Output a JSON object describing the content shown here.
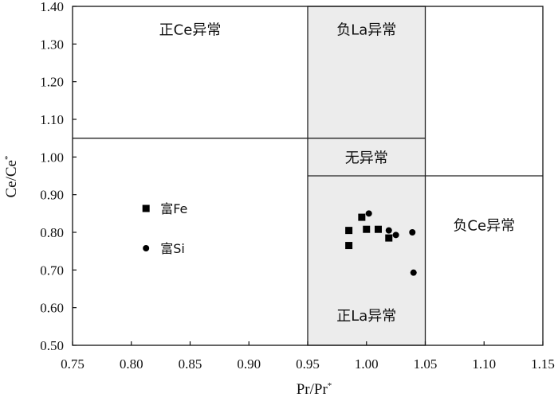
{
  "chart_data": {
    "type": "scatter",
    "xlabel": "Pr/Pr",
    "xlabel_sup": "*",
    "ylabel": "Ce/Ce",
    "ylabel_sup": "*",
    "xlim": [
      0.75,
      1.15
    ],
    "ylim": [
      0.5,
      1.4
    ],
    "x_ticks": [
      "0.75",
      "0.80",
      "0.85",
      "0.90",
      "0.95",
      "1.00",
      "1.05",
      "1.10",
      "1.15"
    ],
    "y_ticks": [
      "0.50",
      "0.60",
      "0.70",
      "0.80",
      "0.90",
      "1.00",
      "1.10",
      "1.20",
      "1.30",
      "1.40"
    ],
    "grid": false,
    "legend_position": "middle-left",
    "shaded_band": {
      "x_from": 0.95,
      "x_to": 1.05,
      "color": "#ececec"
    },
    "boundary_lines": [
      {
        "from": [
          0.75,
          1.05
        ],
        "to": [
          1.05,
          1.05
        ]
      },
      {
        "from": [
          0.95,
          0.95
        ],
        "to": [
          1.15,
          0.95
        ]
      }
    ],
    "regions": [
      {
        "label": "正Ce异常",
        "x": 0.85,
        "y": 1.34
      },
      {
        "label": "负La异常",
        "x": 1.0,
        "y": 1.34
      },
      {
        "label": "无异常",
        "x": 1.0,
        "y": 1.0
      },
      {
        "label": "负Ce异常",
        "x": 1.1,
        "y": 0.82
      },
      {
        "label": "正La异常",
        "x": 1.0,
        "y": 0.58
      }
    ],
    "series": [
      {
        "name": "富Fe",
        "marker": "square",
        "points": [
          [
            0.985,
            0.805
          ],
          [
            0.985,
            0.765
          ],
          [
            0.996,
            0.84
          ],
          [
            1.0,
            0.808
          ],
          [
            1.01,
            0.808
          ],
          [
            1.019,
            0.785
          ]
        ]
      },
      {
        "name": "富Si",
        "marker": "circle",
        "points": [
          [
            1.002,
            0.85
          ],
          [
            1.019,
            0.805
          ],
          [
            1.025,
            0.793
          ],
          [
            1.039,
            0.8
          ],
          [
            1.04,
            0.693
          ]
        ]
      }
    ]
  }
}
